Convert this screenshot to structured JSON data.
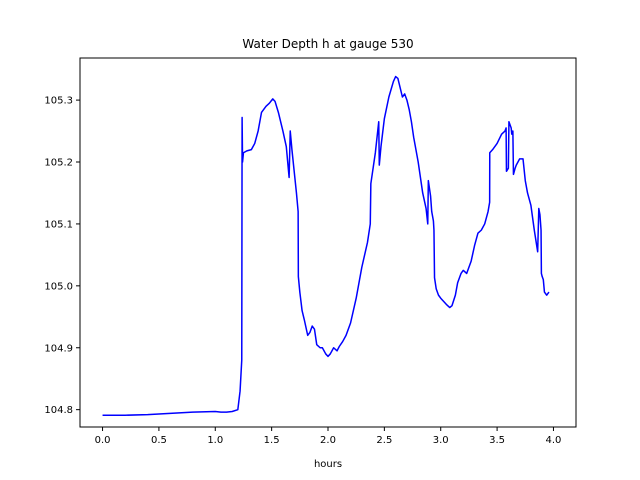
{
  "chart_data": {
    "type": "line",
    "title": "Water Depth h at gauge 530",
    "xlabel": "hours",
    "ylabel": "",
    "xlim": [
      -0.2,
      4.2
    ],
    "ylim": [
      104.772,
      105.368
    ],
    "xticks": [
      0.0,
      0.5,
      1.0,
      1.5,
      2.0,
      2.5,
      3.0,
      3.5,
      4.0
    ],
    "xtick_labels": [
      "0.0",
      "0.5",
      "1.0",
      "1.5",
      "2.0",
      "2.5",
      "3.0",
      "3.5",
      "4.0"
    ],
    "yticks": [
      104.8,
      104.9,
      105.0,
      105.1,
      105.2,
      105.3
    ],
    "ytick_labels": [
      "104.8",
      "104.9",
      "105.0",
      "105.1",
      "105.2",
      "105.3"
    ],
    "grid": false,
    "series": [
      {
        "name": "",
        "color": "#0000ff",
        "points": [
          [
            0.0,
            104.791
          ],
          [
            0.2,
            104.791
          ],
          [
            0.4,
            104.792
          ],
          [
            0.6,
            104.794
          ],
          [
            0.8,
            104.796
          ],
          [
            1.0,
            104.797
          ],
          [
            1.05,
            104.796
          ],
          [
            1.1,
            104.796
          ],
          [
            1.15,
            104.797
          ],
          [
            1.2,
            104.8
          ],
          [
            1.22,
            104.83
          ],
          [
            1.235,
            104.88
          ],
          [
            1.238,
            105.272
          ],
          [
            1.242,
            105.2
          ],
          [
            1.25,
            105.215
          ],
          [
            1.28,
            105.218
          ],
          [
            1.32,
            105.22
          ],
          [
            1.35,
            105.23
          ],
          [
            1.38,
            105.25
          ],
          [
            1.41,
            105.28
          ],
          [
            1.45,
            105.29
          ],
          [
            1.48,
            105.295
          ],
          [
            1.51,
            105.302
          ],
          [
            1.53,
            105.298
          ],
          [
            1.56,
            105.28
          ],
          [
            1.6,
            105.25
          ],
          [
            1.63,
            105.225
          ],
          [
            1.655,
            105.175
          ],
          [
            1.665,
            105.25
          ],
          [
            1.68,
            105.22
          ],
          [
            1.7,
            105.185
          ],
          [
            1.72,
            105.15
          ],
          [
            1.735,
            105.12
          ],
          [
            1.737,
            105.015
          ],
          [
            1.75,
            104.99
          ],
          [
            1.76,
            104.975
          ],
          [
            1.77,
            104.96
          ],
          [
            1.79,
            104.945
          ],
          [
            1.82,
            104.92
          ],
          [
            1.84,
            104.925
          ],
          [
            1.86,
            104.935
          ],
          [
            1.88,
            104.93
          ],
          [
            1.9,
            104.905
          ],
          [
            1.93,
            104.9
          ],
          [
            1.95,
            104.9
          ],
          [
            1.98,
            104.89
          ],
          [
            2.0,
            104.886
          ],
          [
            2.02,
            104.89
          ],
          [
            2.05,
            104.9
          ],
          [
            2.08,
            104.895
          ],
          [
            2.1,
            104.902
          ],
          [
            2.13,
            104.91
          ],
          [
            2.16,
            104.92
          ],
          [
            2.2,
            104.94
          ],
          [
            2.25,
            104.98
          ],
          [
            2.28,
            105.01
          ],
          [
            2.3,
            105.03
          ],
          [
            2.35,
            105.07
          ],
          [
            2.375,
            105.1
          ],
          [
            2.38,
            105.165
          ],
          [
            2.42,
            105.215
          ],
          [
            2.45,
            105.265
          ],
          [
            2.455,
            105.195
          ],
          [
            2.47,
            105.225
          ],
          [
            2.5,
            105.27
          ],
          [
            2.54,
            105.305
          ],
          [
            2.58,
            105.33
          ],
          [
            2.6,
            105.338
          ],
          [
            2.62,
            105.335
          ],
          [
            2.64,
            105.32
          ],
          [
            2.66,
            105.305
          ],
          [
            2.68,
            105.31
          ],
          [
            2.7,
            105.3
          ],
          [
            2.72,
            105.285
          ],
          [
            2.74,
            105.265
          ],
          [
            2.76,
            105.24
          ],
          [
            2.8,
            105.2
          ],
          [
            2.84,
            105.15
          ],
          [
            2.87,
            105.125
          ],
          [
            2.885,
            105.1
          ],
          [
            2.89,
            105.17
          ],
          [
            2.91,
            105.145
          ],
          [
            2.92,
            105.12
          ],
          [
            2.935,
            105.105
          ],
          [
            2.94,
            105.09
          ],
          [
            2.945,
            105.013
          ],
          [
            2.96,
            104.995
          ],
          [
            2.98,
            104.985
          ],
          [
            3.0,
            104.98
          ],
          [
            3.05,
            104.97
          ],
          [
            3.08,
            104.965
          ],
          [
            3.1,
            104.968
          ],
          [
            3.13,
            104.985
          ],
          [
            3.15,
            105.005
          ],
          [
            3.18,
            105.02
          ],
          [
            3.2,
            105.025
          ],
          [
            3.23,
            105.02
          ],
          [
            3.27,
            105.04
          ],
          [
            3.3,
            105.065
          ],
          [
            3.33,
            105.085
          ],
          [
            3.36,
            105.09
          ],
          [
            3.39,
            105.1
          ],
          [
            3.42,
            105.12
          ],
          [
            3.434,
            105.135
          ],
          [
            3.435,
            105.215
          ],
          [
            3.46,
            105.22
          ],
          [
            3.5,
            105.23
          ],
          [
            3.54,
            105.245
          ],
          [
            3.57,
            105.25
          ],
          [
            3.58,
            105.255
          ],
          [
            3.583,
            105.185
          ],
          [
            3.6,
            105.19
          ],
          [
            3.605,
            105.265
          ],
          [
            3.625,
            105.255
          ],
          [
            3.63,
            105.245
          ],
          [
            3.64,
            105.25
          ],
          [
            3.645,
            105.18
          ],
          [
            3.66,
            105.19
          ],
          [
            3.67,
            105.195
          ],
          [
            3.7,
            105.205
          ],
          [
            3.73,
            105.205
          ],
          [
            3.75,
            105.17
          ],
          [
            3.77,
            105.15
          ],
          [
            3.8,
            105.13
          ],
          [
            3.83,
            105.09
          ],
          [
            3.86,
            105.055
          ],
          [
            3.87,
            105.125
          ],
          [
            3.88,
            105.115
          ],
          [
            3.89,
            105.09
          ],
          [
            3.893,
            105.02
          ],
          [
            3.9,
            105.015
          ],
          [
            3.91,
            105.01
          ],
          [
            3.92,
            104.99
          ],
          [
            3.94,
            104.985
          ],
          [
            3.96,
            104.99
          ]
        ]
      }
    ]
  }
}
